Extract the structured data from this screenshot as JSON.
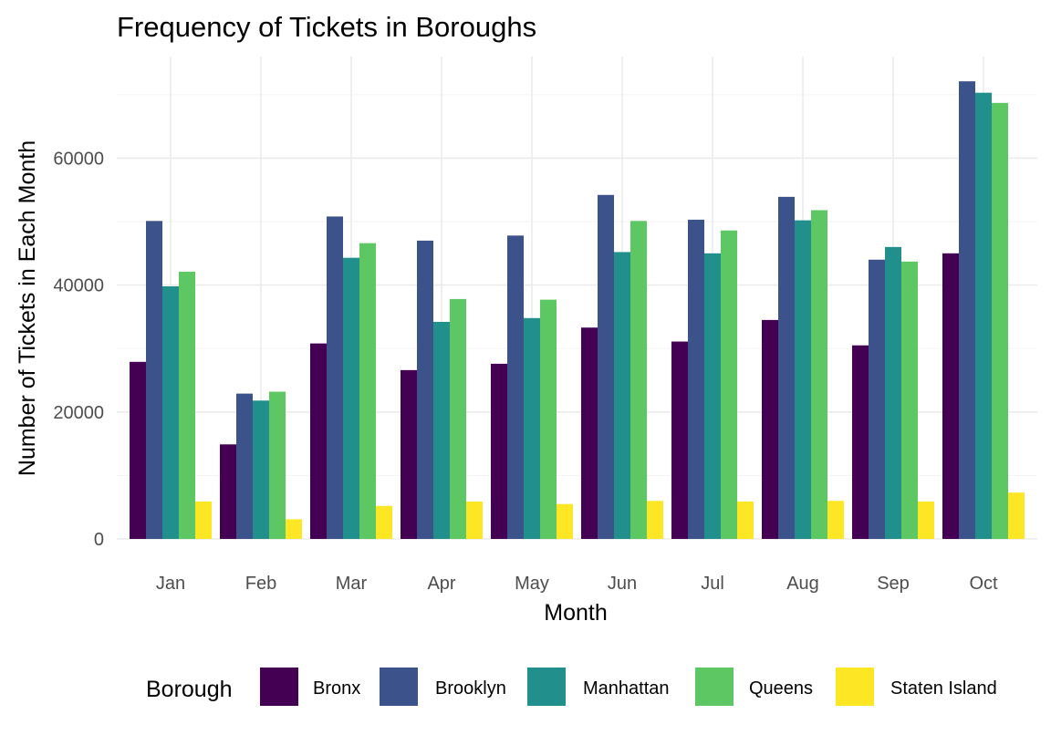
{
  "chart_data": {
    "type": "bar",
    "title": "Frequency of Tickets in Boroughs",
    "xlabel": "Month",
    "ylabel": "Number of Tickets in Each Month",
    "categories": [
      "Jan",
      "Feb",
      "Mar",
      "Apr",
      "May",
      "Jun",
      "Jul",
      "Aug",
      "Sep",
      "Oct"
    ],
    "ylim": [
      0,
      72500
    ],
    "yticks": [
      0,
      20000,
      40000,
      60000
    ],
    "ytick_labels": [
      "0",
      "20000",
      "40000",
      "60000"
    ],
    "grid": true,
    "legend": {
      "title": "Borough",
      "position": "bottom"
    },
    "series": [
      {
        "name": "Bronx",
        "color": "#440154",
        "values": [
          27900,
          14900,
          30800,
          26600,
          27600,
          33300,
          31100,
          34500,
          30500,
          45000
        ]
      },
      {
        "name": "Brooklyn",
        "color": "#3B528B",
        "values": [
          50100,
          22900,
          50800,
          47000,
          47800,
          54200,
          50300,
          53900,
          44000,
          72100
        ]
      },
      {
        "name": "Manhattan",
        "color": "#21908C",
        "values": [
          39800,
          21800,
          44300,
          34200,
          34800,
          45200,
          45000,
          50200,
          46000,
          70300
        ]
      },
      {
        "name": "Queens",
        "color": "#5DC863",
        "values": [
          42100,
          23200,
          46600,
          37800,
          37700,
          50100,
          48600,
          51800,
          43700,
          68700
        ]
      },
      {
        "name": "Staten Island",
        "color": "#FDE725",
        "values": [
          5900,
          3100,
          5200,
          5900,
          5500,
          6000,
          5900,
          6000,
          5900,
          7300
        ]
      }
    ]
  }
}
